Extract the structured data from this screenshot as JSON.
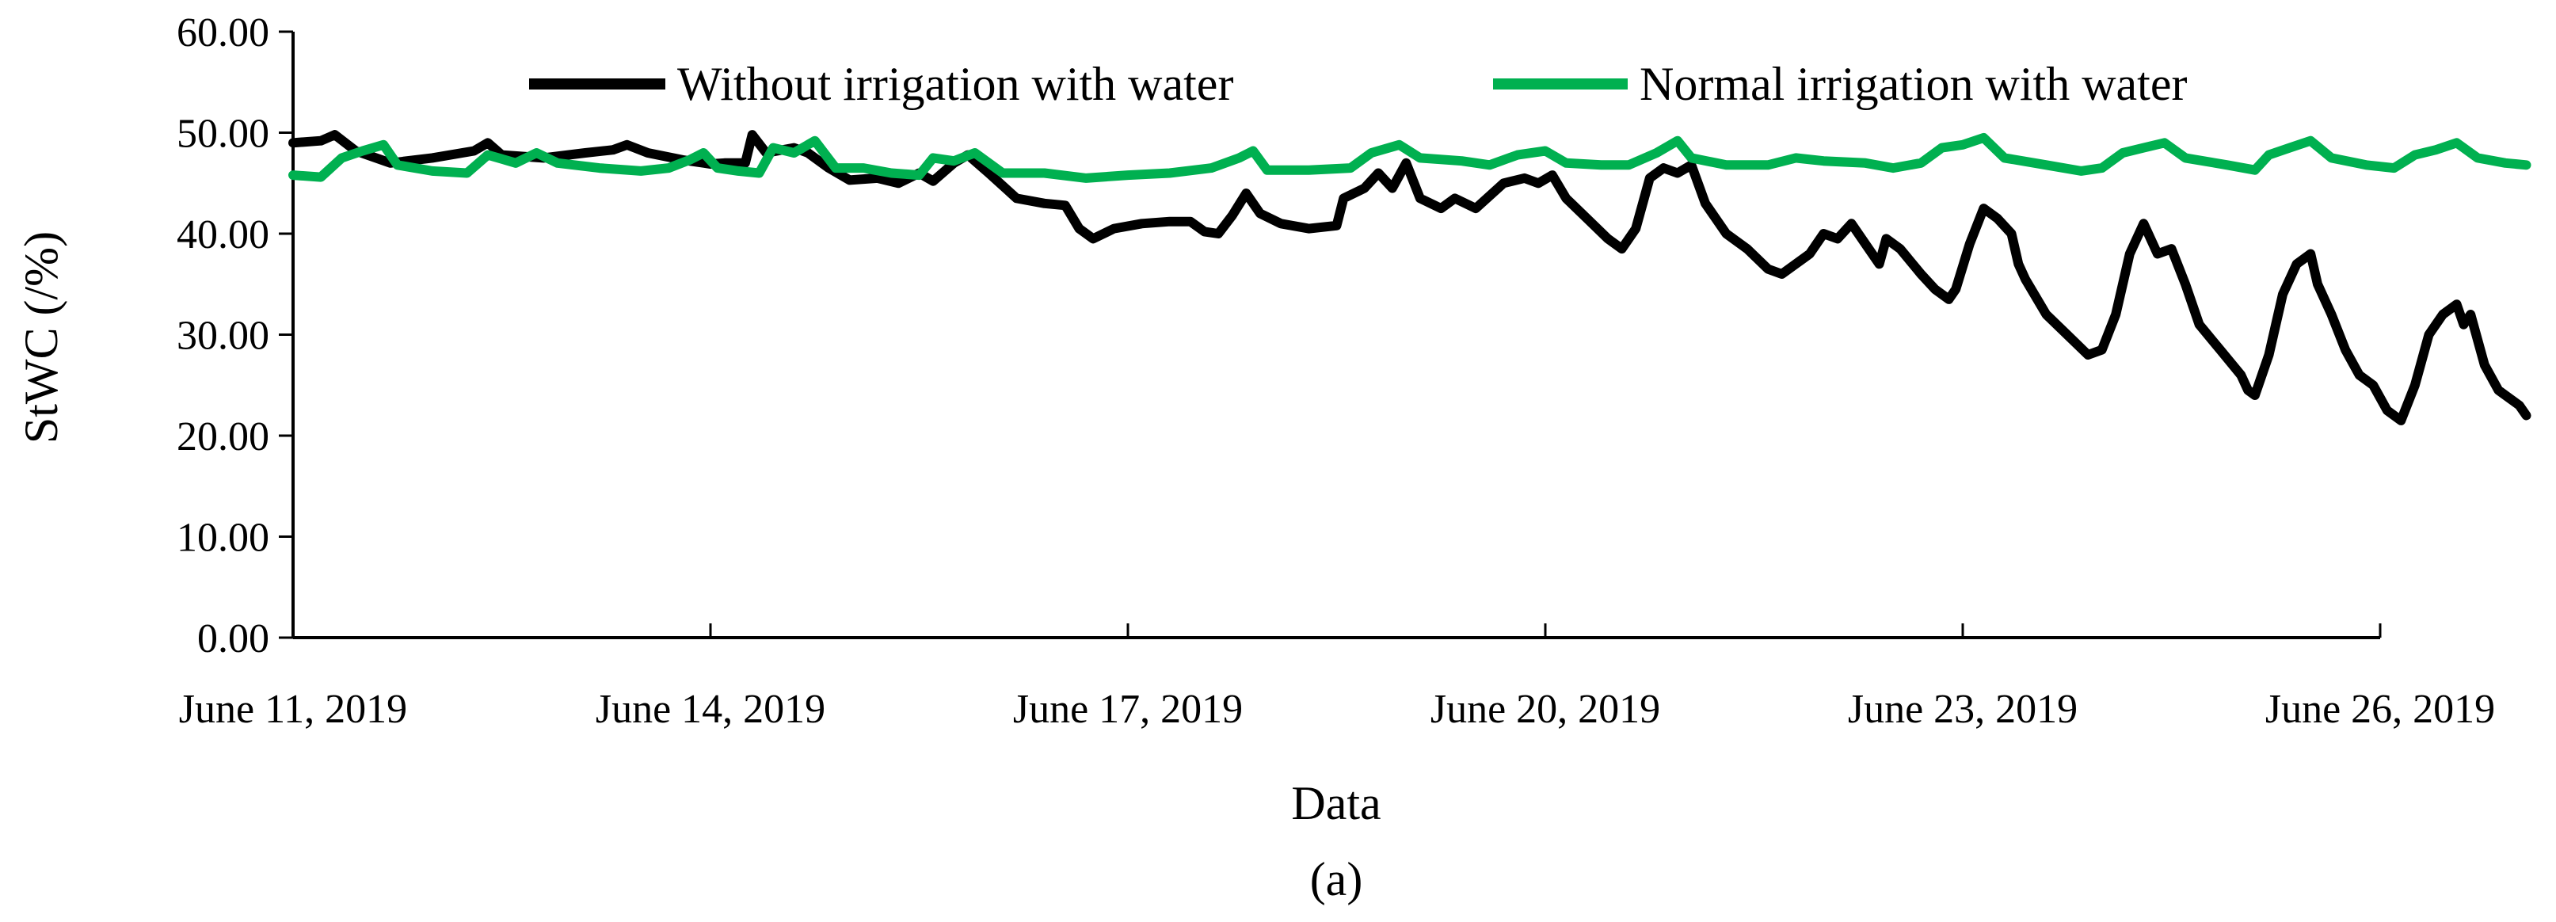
{
  "chart_data": {
    "type": "line",
    "title": "",
    "xlabel": "Data",
    "ylabel": "StWC (/%)",
    "caption": "(a)",
    "ylim": [
      0,
      60
    ],
    "yticks": [
      "0.00",
      "10.00",
      "20.00",
      "30.00",
      "40.00",
      "50.00",
      "60.00"
    ],
    "xlim": [
      0,
      15
    ],
    "xticks": [
      {
        "value": 0,
        "label": "June 11, 2019"
      },
      {
        "value": 3,
        "label": "June 14, 2019"
      },
      {
        "value": 6,
        "label": "June 17, 2019"
      },
      {
        "value": 9,
        "label": "June 20, 2019"
      },
      {
        "value": 12,
        "label": "June 23, 2019"
      },
      {
        "value": 15,
        "label": "June 26, 2019"
      }
    ],
    "grid": false,
    "legend_position": "top",
    "series": [
      {
        "name": "Without irrigation with water",
        "color": "#000000",
        "points": [
          [
            0.0,
            49.0
          ],
          [
            0.2,
            49.2
          ],
          [
            0.3,
            49.8
          ],
          [
            0.45,
            48.2
          ],
          [
            0.7,
            47.0
          ],
          [
            1.0,
            47.5
          ],
          [
            1.3,
            48.2
          ],
          [
            1.4,
            49.0
          ],
          [
            1.5,
            47.8
          ],
          [
            1.8,
            47.5
          ],
          [
            2.1,
            48.0
          ],
          [
            2.3,
            48.3
          ],
          [
            2.4,
            48.8
          ],
          [
            2.55,
            48.0
          ],
          [
            2.8,
            47.3
          ],
          [
            3.0,
            46.9
          ],
          [
            3.1,
            47.0
          ],
          [
            3.25,
            47.0
          ],
          [
            3.3,
            49.8
          ],
          [
            3.4,
            48.0
          ],
          [
            3.6,
            48.5
          ],
          [
            3.7,
            48.0
          ],
          [
            3.85,
            46.5
          ],
          [
            4.0,
            45.3
          ],
          [
            4.2,
            45.5
          ],
          [
            4.35,
            45.0
          ],
          [
            4.5,
            46.0
          ],
          [
            4.6,
            45.2
          ],
          [
            4.75,
            47.0
          ],
          [
            4.85,
            47.8
          ],
          [
            5.0,
            46.0
          ],
          [
            5.2,
            43.5
          ],
          [
            5.4,
            43.0
          ],
          [
            5.55,
            42.8
          ],
          [
            5.65,
            40.5
          ],
          [
            5.75,
            39.5
          ],
          [
            5.9,
            40.5
          ],
          [
            6.1,
            41.0
          ],
          [
            6.3,
            41.2
          ],
          [
            6.45,
            41.2
          ],
          [
            6.55,
            40.2
          ],
          [
            6.65,
            40.0
          ],
          [
            6.75,
            41.8
          ],
          [
            6.85,
            44.0
          ],
          [
            6.95,
            42.0
          ],
          [
            7.1,
            41.0
          ],
          [
            7.3,
            40.5
          ],
          [
            7.5,
            40.8
          ],
          [
            7.55,
            43.5
          ],
          [
            7.7,
            44.5
          ],
          [
            7.8,
            46.0
          ],
          [
            7.9,
            44.5
          ],
          [
            8.0,
            47.0
          ],
          [
            8.1,
            43.5
          ],
          [
            8.25,
            42.5
          ],
          [
            8.35,
            43.5
          ],
          [
            8.5,
            42.5
          ],
          [
            8.7,
            45.0
          ],
          [
            8.85,
            45.5
          ],
          [
            8.95,
            45.0
          ],
          [
            9.05,
            45.8
          ],
          [
            9.15,
            43.5
          ],
          [
            9.3,
            41.5
          ],
          [
            9.45,
            39.5
          ],
          [
            9.55,
            38.5
          ],
          [
            9.65,
            40.5
          ],
          [
            9.75,
            45.5
          ],
          [
            9.85,
            46.5
          ],
          [
            9.95,
            46.0
          ],
          [
            10.05,
            46.8
          ],
          [
            10.15,
            43.0
          ],
          [
            10.3,
            40.0
          ],
          [
            10.45,
            38.5
          ],
          [
            10.6,
            36.5
          ],
          [
            10.7,
            36.0
          ],
          [
            10.8,
            37.0
          ],
          [
            10.9,
            38.0
          ],
          [
            11.0,
            40.0
          ],
          [
            11.1,
            39.5
          ],
          [
            11.2,
            41.0
          ],
          [
            11.3,
            39.0
          ],
          [
            11.4,
            37.0
          ],
          [
            11.45,
            39.5
          ],
          [
            11.55,
            38.5
          ],
          [
            11.7,
            36.0
          ],
          [
            11.8,
            34.5
          ],
          [
            11.9,
            33.5
          ],
          [
            11.95,
            34.5
          ],
          [
            12.05,
            39.0
          ],
          [
            12.15,
            42.5
          ],
          [
            12.25,
            41.5
          ],
          [
            12.35,
            40.0
          ],
          [
            12.4,
            37.0
          ],
          [
            12.45,
            35.5
          ],
          [
            12.6,
            32.0
          ],
          [
            12.75,
            30.0
          ],
          [
            12.9,
            28.0
          ],
          [
            13.0,
            28.5
          ],
          [
            13.1,
            32.0
          ],
          [
            13.2,
            38.0
          ],
          [
            13.3,
            41.0
          ],
          [
            13.4,
            38.0
          ],
          [
            13.5,
            38.5
          ],
          [
            13.6,
            35.0
          ],
          [
            13.7,
            31.0
          ],
          [
            13.85,
            28.5
          ],
          [
            14.0,
            26.0
          ],
          [
            14.05,
            24.5
          ],
          [
            14.1,
            24.0
          ],
          [
            14.2,
            28.0
          ],
          [
            14.3,
            34.0
          ],
          [
            14.4,
            37.0
          ],
          [
            14.5,
            38.0
          ],
          [
            14.55,
            35.0
          ],
          [
            14.65,
            32.0
          ],
          [
            14.75,
            28.5
          ],
          [
            14.85,
            26.0
          ],
          [
            14.95,
            25.0
          ],
          [
            15.05,
            22.5
          ],
          [
            15.15,
            21.5
          ],
          [
            15.25,
            25.0
          ],
          [
            15.35,
            30.0
          ],
          [
            15.45,
            32.0
          ],
          [
            15.55,
            33.0
          ],
          [
            15.6,
            31.0
          ],
          [
            15.65,
            32.0
          ],
          [
            15.75,
            27.0
          ],
          [
            15.85,
            24.5
          ],
          [
            16.0,
            23.0
          ],
          [
            16.05,
            22.0
          ]
        ]
      },
      {
        "name": "Normal irrigation with water",
        "color": "#00b050",
        "points": [
          [
            0.0,
            45.8
          ],
          [
            0.2,
            45.6
          ],
          [
            0.35,
            47.5
          ],
          [
            0.5,
            48.2
          ],
          [
            0.65,
            48.8
          ],
          [
            0.75,
            46.8
          ],
          [
            1.0,
            46.2
          ],
          [
            1.25,
            46.0
          ],
          [
            1.4,
            47.8
          ],
          [
            1.6,
            47.0
          ],
          [
            1.75,
            48.0
          ],
          [
            1.9,
            47.0
          ],
          [
            2.2,
            46.5
          ],
          [
            2.5,
            46.2
          ],
          [
            2.7,
            46.5
          ],
          [
            2.85,
            47.3
          ],
          [
            2.95,
            48.0
          ],
          [
            3.05,
            46.5
          ],
          [
            3.2,
            46.2
          ],
          [
            3.35,
            46.0
          ],
          [
            3.45,
            48.5
          ],
          [
            3.6,
            48.0
          ],
          [
            3.75,
            49.2
          ],
          [
            3.9,
            46.5
          ],
          [
            4.1,
            46.5
          ],
          [
            4.3,
            46.0
          ],
          [
            4.5,
            45.8
          ],
          [
            4.6,
            47.5
          ],
          [
            4.75,
            47.2
          ],
          [
            4.9,
            48.0
          ],
          [
            5.1,
            46.0
          ],
          [
            5.4,
            46.0
          ],
          [
            5.7,
            45.5
          ],
          [
            6.0,
            45.8
          ],
          [
            6.3,
            46.0
          ],
          [
            6.6,
            46.5
          ],
          [
            6.8,
            47.5
          ],
          [
            6.9,
            48.2
          ],
          [
            7.0,
            46.3
          ],
          [
            7.3,
            46.3
          ],
          [
            7.6,
            46.5
          ],
          [
            7.75,
            48.0
          ],
          [
            7.95,
            48.8
          ],
          [
            8.1,
            47.5
          ],
          [
            8.4,
            47.2
          ],
          [
            8.6,
            46.8
          ],
          [
            8.8,
            47.8
          ],
          [
            9.0,
            48.2
          ],
          [
            9.15,
            47.0
          ],
          [
            9.4,
            46.8
          ],
          [
            9.6,
            46.8
          ],
          [
            9.8,
            48.0
          ],
          [
            9.95,
            49.2
          ],
          [
            10.05,
            47.5
          ],
          [
            10.3,
            46.8
          ],
          [
            10.6,
            46.8
          ],
          [
            10.8,
            47.5
          ],
          [
            11.0,
            47.2
          ],
          [
            11.3,
            47.0
          ],
          [
            11.5,
            46.5
          ],
          [
            11.7,
            47.0
          ],
          [
            11.85,
            48.5
          ],
          [
            12.0,
            48.8
          ],
          [
            12.15,
            49.5
          ],
          [
            12.3,
            47.5
          ],
          [
            12.6,
            46.8
          ],
          [
            12.85,
            46.2
          ],
          [
            13.0,
            46.5
          ],
          [
            13.15,
            48.0
          ],
          [
            13.3,
            48.5
          ],
          [
            13.45,
            49.0
          ],
          [
            13.6,
            47.5
          ],
          [
            13.9,
            46.8
          ],
          [
            14.1,
            46.3
          ],
          [
            14.2,
            47.8
          ],
          [
            14.35,
            48.5
          ],
          [
            14.5,
            49.2
          ],
          [
            14.65,
            47.5
          ],
          [
            14.9,
            46.8
          ],
          [
            15.1,
            46.5
          ],
          [
            15.25,
            47.8
          ],
          [
            15.4,
            48.3
          ],
          [
            15.55,
            49.0
          ],
          [
            15.7,
            47.5
          ],
          [
            15.9,
            47.0
          ],
          [
            16.05,
            46.8
          ]
        ]
      }
    ]
  }
}
